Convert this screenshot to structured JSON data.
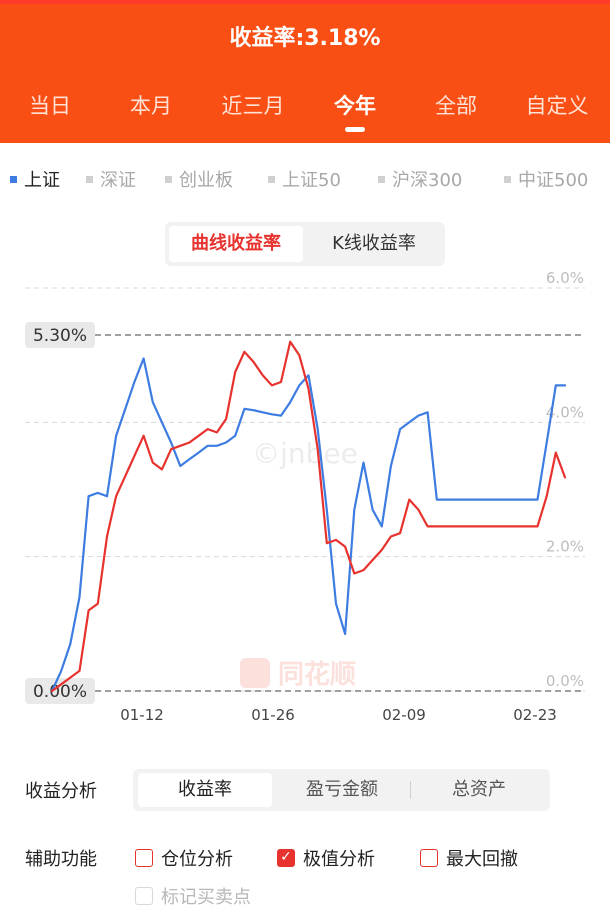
{
  "header": {
    "title": "收益率:3.18%",
    "tabs": [
      "当日",
      "本月",
      "近三月",
      "今年",
      "全部",
      "自定义"
    ],
    "active_tab": 3
  },
  "indices": [
    "上证",
    "深证",
    "创业板",
    "上证50",
    "沪深300",
    "中证500"
  ],
  "active_index": 0,
  "mode_toggle": {
    "options": [
      "曲线收益率",
      "K线收益率"
    ],
    "active": 0
  },
  "chart_data": {
    "type": "line",
    "title": "",
    "xlabel": "",
    "ylabel": "",
    "x_ticks": [
      "01-12",
      "01-26",
      "02-09",
      "02-23"
    ],
    "y_right_ticks": [
      "6.0%",
      "4.0%",
      "2.0%",
      "0.0%"
    ],
    "ylim": [
      0,
      6.0
    ],
    "grid": true,
    "markers": [
      {
        "label": "5.30%",
        "value": 5.3
      },
      {
        "label": "0.00%",
        "value": 0.0
      }
    ],
    "watermark": "©jnbee",
    "logo_text": "同花顺",
    "series": [
      {
        "color": "#3d7ce0",
        "values": [
          0.0,
          0.3,
          0.7,
          1.4,
          2.9,
          2.95,
          2.9,
          3.8,
          4.2,
          4.6,
          4.95,
          4.3,
          4.0,
          3.7,
          3.35,
          3.45,
          3.55,
          3.65,
          3.65,
          3.7,
          3.8,
          4.2,
          4.18,
          4.15,
          4.12,
          4.1,
          4.3,
          4.55,
          4.7,
          3.9,
          2.7,
          1.3,
          0.85,
          2.7,
          3.4,
          2.7,
          2.45,
          3.35,
          3.9,
          4.0,
          4.1,
          4.15,
          2.85,
          2.85,
          2.85,
          2.85,
          2.85,
          2.85,
          2.85,
          2.85,
          2.85,
          2.85,
          2.85,
          2.85,
          3.7,
          4.55,
          4.55
        ]
      },
      {
        "color": "#e7322e",
        "values": [
          0.0,
          0.1,
          0.2,
          0.3,
          1.2,
          1.3,
          2.3,
          2.9,
          3.2,
          3.5,
          3.8,
          3.4,
          3.3,
          3.6,
          3.65,
          3.7,
          3.8,
          3.9,
          3.85,
          4.05,
          4.75,
          5.05,
          4.9,
          4.7,
          4.55,
          4.6,
          5.2,
          5.0,
          4.5,
          3.6,
          2.2,
          2.25,
          2.15,
          1.75,
          1.8,
          1.95,
          2.1,
          2.3,
          2.35,
          2.85,
          2.7,
          2.45,
          2.45,
          2.45,
          2.45,
          2.45,
          2.45,
          2.45,
          2.45,
          2.45,
          2.45,
          2.45,
          2.45,
          2.45,
          2.9,
          3.55,
          3.18
        ]
      }
    ]
  },
  "analysis": {
    "label": "收益分析",
    "options": [
      "收益率",
      "盈亏金额",
      "总资产"
    ],
    "active": 0
  },
  "aux": {
    "label": "辅助功能",
    "options": [
      {
        "label": "仓位分析",
        "checked": false,
        "disabled": false
      },
      {
        "label": "极值分析",
        "checked": true,
        "disabled": false
      },
      {
        "label": "最大回撤",
        "checked": false,
        "disabled": false
      },
      {
        "label": "标记买卖点",
        "checked": false,
        "disabled": true
      }
    ]
  }
}
